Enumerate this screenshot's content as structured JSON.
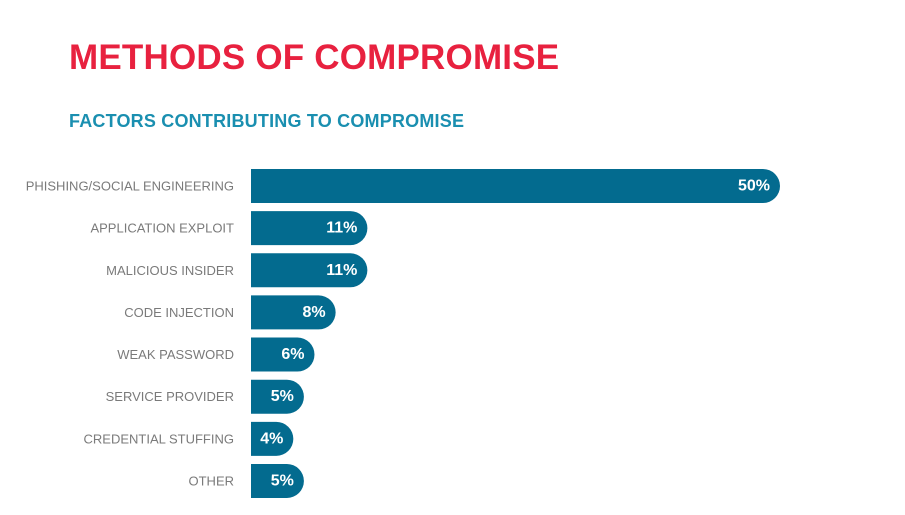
{
  "header": {
    "title": "METHODS OF COMPROMISE",
    "subtitle": "FACTORS CONTRIBUTING TO COMPROMISE"
  },
  "colors": {
    "title": "#e8213f",
    "subtitle": "#1a8fb0",
    "bar": "#036b8f",
    "category_label": "#7a7a7a",
    "value_label": "#ffffff"
  },
  "chart_data": {
    "type": "bar",
    "orientation": "horizontal",
    "categories": [
      "PHISHING/SOCIAL ENGINEERING",
      "APPLICATION EXPLOIT",
      "MALICIOUS INSIDER",
      "CODE INJECTION",
      "WEAK PASSWORD",
      "SERVICE PROVIDER",
      "CREDENTIAL STUFFING",
      "OTHER"
    ],
    "values": [
      50,
      11,
      11,
      8,
      6,
      5,
      4,
      5
    ],
    "value_labels": [
      "50%",
      "11%",
      "11%",
      "8%",
      "6%",
      "5%",
      "4%",
      "5%"
    ],
    "unit": "%",
    "xlim": [
      0,
      50
    ],
    "grid": false,
    "legend": "none"
  }
}
